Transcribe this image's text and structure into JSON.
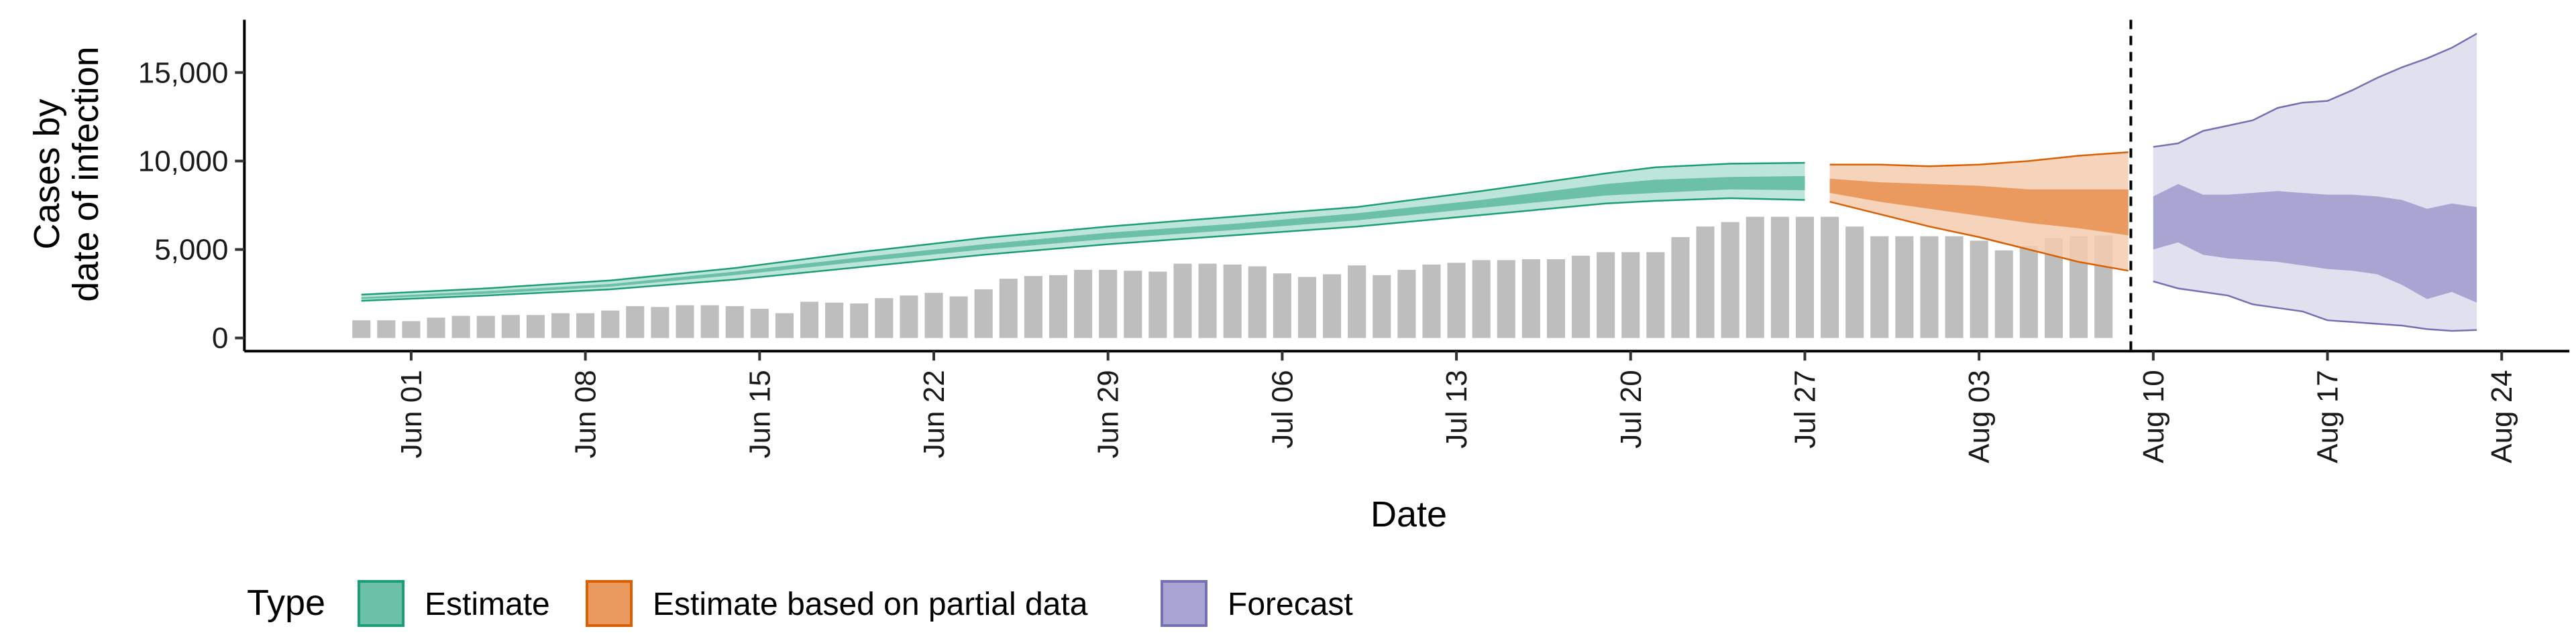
{
  "chart_data": {
    "type": "area",
    "ylabel_lines": [
      "Cases by",
      "date of infection"
    ],
    "xlabel": "Date",
    "ylim": [
      0,
      17500
    ],
    "y_ticks": [
      0,
      5000,
      10000,
      15000
    ],
    "y_tick_labels": [
      "0",
      "5,000",
      "10,000",
      "15,000"
    ],
    "x_range": [
      "2020-05-25",
      "2020-08-27"
    ],
    "x_ticks": [
      "2020-06-01",
      "2020-06-08",
      "2020-06-15",
      "2020-06-22",
      "2020-06-29",
      "2020-07-06",
      "2020-07-13",
      "2020-07-20",
      "2020-07-27",
      "2020-08-03",
      "2020-08-10",
      "2020-08-17",
      "2020-08-24"
    ],
    "x_tick_labels": [
      "Jun 01",
      "Jun 08",
      "Jun 15",
      "Jun 22",
      "Jun 29",
      "Jul 06",
      "Jul 13",
      "Jul 20",
      "Jul 27",
      "Aug 03",
      "Aug 10",
      "Aug 17",
      "Aug 24"
    ],
    "forecast_start_line": "2020-08-09",
    "grid": false,
    "legend_title": "Type",
    "legend_position": "bottom",
    "colors": {
      "bars": "#bebebe",
      "estimate_outer": "#b3e0d2",
      "estimate_inner": "#6cc0a7",
      "estimate_line": "#1b9e77",
      "partial_outer": "#f5cdb0",
      "partial_inner": "#ea9a5e",
      "partial_line": "#d95f02",
      "forecast_outer": "#dcdbeb",
      "forecast_inner": "#a9a5d2",
      "forecast_line": "#7570b3"
    },
    "reported_cases": {
      "dates": [
        "2020-05-30",
        "2020-05-31",
        "2020-06-01",
        "2020-06-02",
        "2020-06-03",
        "2020-06-04",
        "2020-06-05",
        "2020-06-06",
        "2020-06-07",
        "2020-06-08",
        "2020-06-09",
        "2020-06-10",
        "2020-06-11",
        "2020-06-12",
        "2020-06-13",
        "2020-06-14",
        "2020-06-15",
        "2020-06-16",
        "2020-06-17",
        "2020-06-18",
        "2020-06-19",
        "2020-06-20",
        "2020-06-21",
        "2020-06-22",
        "2020-06-23",
        "2020-06-24",
        "2020-06-25",
        "2020-06-26",
        "2020-06-27",
        "2020-06-28",
        "2020-06-29",
        "2020-06-30",
        "2020-07-01",
        "2020-07-02",
        "2020-07-03",
        "2020-07-04",
        "2020-07-05",
        "2020-07-06",
        "2020-07-07",
        "2020-07-08",
        "2020-07-09",
        "2020-07-10",
        "2020-07-11",
        "2020-07-12",
        "2020-07-13",
        "2020-07-14",
        "2020-07-15",
        "2020-07-16",
        "2020-07-17",
        "2020-07-18",
        "2020-07-19",
        "2020-07-20",
        "2020-07-21",
        "2020-07-22",
        "2020-07-23",
        "2020-07-24",
        "2020-07-25",
        "2020-07-26",
        "2020-07-27",
        "2020-07-28",
        "2020-07-29",
        "2020-07-30",
        "2020-07-31",
        "2020-08-01",
        "2020-08-02",
        "2020-08-03",
        "2020-08-04",
        "2020-08-05",
        "2020-08-06",
        "2020-08-07",
        "2020-08-08"
      ],
      "values": [
        1000,
        1000,
        950,
        1150,
        1250,
        1250,
        1300,
        1300,
        1400,
        1400,
        1550,
        1800,
        1750,
        1850,
        1850,
        1800,
        1650,
        1400,
        2050,
        2000,
        1950,
        2250,
        2400,
        2550,
        2350,
        2750,
        3350,
        3500,
        3550,
        3850,
        3850,
        3800,
        3750,
        4200,
        4200,
        4150,
        4050,
        3650,
        3450,
        3600,
        4100,
        3550,
        3850,
        4150,
        4250,
        4400,
        4400,
        4450,
        4450,
        4650,
        4850,
        4850,
        4850,
        5700,
        6300,
        6550,
        6850,
        6850,
        6850,
        6850,
        6300,
        5750,
        5750,
        5750,
        5750,
        5500,
        4950,
        5200,
        5650,
        5750,
        5800
      ]
    },
    "series": [
      {
        "name": "Estimate",
        "dates": [
          "2020-05-30",
          "2020-06-04",
          "2020-06-09",
          "2020-06-14",
          "2020-06-19",
          "2020-06-24",
          "2020-06-29",
          "2020-07-04",
          "2020-07-09",
          "2020-07-14",
          "2020-07-19",
          "2020-07-21",
          "2020-07-24",
          "2020-07-27"
        ],
        "lower_90": [
          2100,
          2400,
          2750,
          3300,
          4000,
          4700,
          5300,
          5800,
          6300,
          6950,
          7600,
          7750,
          7900,
          7800
        ],
        "upper_90": [
          2450,
          2800,
          3250,
          3950,
          4850,
          5650,
          6300,
          6850,
          7400,
          8300,
          9300,
          9650,
          9850,
          9900
        ],
        "lower_50": [
          2200,
          2500,
          2900,
          3550,
          4300,
          5000,
          5600,
          6100,
          6650,
          7350,
          8050,
          8200,
          8400,
          8350
        ],
        "upper_50": [
          2300,
          2650,
          3050,
          3750,
          4550,
          5300,
          5950,
          6450,
          7050,
          7800,
          8700,
          8950,
          9100,
          9150
        ]
      },
      {
        "name": "Estimate based on partial data",
        "dates": [
          "2020-07-28",
          "2020-07-30",
          "2020-08-01",
          "2020-08-03",
          "2020-08-05",
          "2020-08-07",
          "2020-08-09"
        ],
        "lower_90": [
          7700,
          7000,
          6300,
          5700,
          5000,
          4300,
          3800
        ],
        "upper_90": [
          9800,
          9800,
          9700,
          9800,
          10000,
          10300,
          10500
        ],
        "lower_50": [
          8200,
          7700,
          7300,
          6900,
          6500,
          6200,
          5800
        ],
        "upper_50": [
          9000,
          8800,
          8700,
          8600,
          8400,
          8400,
          8400
        ]
      },
      {
        "name": "Forecast",
        "dates": [
          "2020-08-10",
          "2020-08-11",
          "2020-08-12",
          "2020-08-13",
          "2020-08-14",
          "2020-08-15",
          "2020-08-16",
          "2020-08-17",
          "2020-08-18",
          "2020-08-19",
          "2020-08-20",
          "2020-08-21",
          "2020-08-22",
          "2020-08-23"
        ],
        "lower_90": [
          3200,
          2800,
          2600,
          2400,
          1900,
          1700,
          1500,
          1000,
          900,
          800,
          700,
          500,
          400,
          450
        ],
        "upper_90": [
          10800,
          11000,
          11700,
          12000,
          12300,
          13000,
          13300,
          13400,
          14000,
          14700,
          15300,
          15800,
          16400,
          17200
        ],
        "lower_50": [
          5000,
          5400,
          4700,
          4500,
          4400,
          4300,
          4100,
          3900,
          3800,
          3600,
          3000,
          2200,
          2600,
          2000
        ],
        "upper_50": [
          8000,
          8700,
          8100,
          8100,
          8200,
          8300,
          8200,
          8100,
          8100,
          8000,
          7800,
          7300,
          7600,
          7400
        ]
      }
    ],
    "legend": [
      {
        "label": "Estimate",
        "fill": "#6cc0a7",
        "stroke": "#1b9e77"
      },
      {
        "label": "Estimate based on partial data",
        "fill": "#ea9a5e",
        "stroke": "#d95f02"
      },
      {
        "label": "Forecast",
        "fill": "#a9a5d2",
        "stroke": "#7570b3"
      }
    ]
  }
}
